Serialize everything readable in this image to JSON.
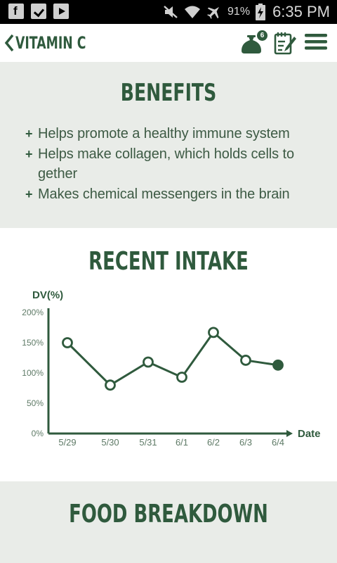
{
  "status_bar": {
    "apps": [
      "facebook-icon",
      "check-icon",
      "play-icon"
    ],
    "battery": "91%",
    "time": "6:35 PM"
  },
  "header": {
    "title": "VITAMIN C",
    "bag_badge": "6"
  },
  "benefits": {
    "title": "BENEFITS",
    "bullet": "+",
    "items": [
      "Helps promote a healthy immune system",
      "Helps make collagen, which holds cells to gether",
      "Makes chemical messengers in the brain"
    ]
  },
  "recent_intake": {
    "title": "RECENT INTAKE"
  },
  "chart_data": {
    "type": "line",
    "ylabel": "DV(%)",
    "xlabel": "Date",
    "categories": [
      "5/29",
      "5/30",
      "5/31",
      "6/1",
      "6/2",
      "6/3",
      "6/4"
    ],
    "y_ticks": [
      "200%",
      "150%",
      "100%",
      "50%",
      "0%"
    ],
    "ylim": [
      0,
      200
    ],
    "values": [
      150,
      80,
      118,
      93,
      167,
      121,
      113
    ],
    "grid": false,
    "colors": {
      "line": "#2f5a3d",
      "point_fill": "#ffffff",
      "last_point_fill": "#2f5a3d"
    }
  },
  "food_breakdown": {
    "title": "FOOD BREAKDOWN"
  },
  "colors": {
    "brand_green": "#2f5a3d",
    "section_gray": "#e9ece8"
  }
}
